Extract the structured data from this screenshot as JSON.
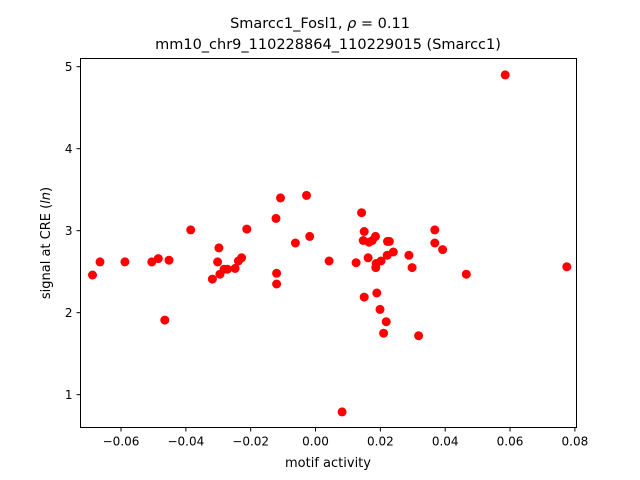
{
  "chart_data": {
    "type": "scatter",
    "title_line1": "Smarcc1_Fosl1, ",
    "title_rho_symbol": "ρ",
    "title_rho_value": " = 0.11",
    "title_line2": "mm10_chr9_110228864_110229015 (Smarcc1)",
    "xlabel": "motif activity",
    "ylabel_prefix": "signal at CRE (",
    "ylabel_italic": "ln",
    "ylabel_suffix": ")",
    "xlim": [
      -0.0725,
      0.0805
    ],
    "ylim": [
      0.6,
      5.1
    ],
    "xticks": [
      -0.06,
      -0.04,
      -0.02,
      0.0,
      0.02,
      0.04,
      0.06,
      0.08
    ],
    "xtick_labels": [
      "−0.06",
      "−0.04",
      "−0.02",
      "0.00",
      "0.02",
      "0.04",
      "0.06",
      "0.08"
    ],
    "yticks": [
      1,
      2,
      3,
      4,
      5
    ],
    "ytick_labels": [
      "1",
      "2",
      "3",
      "4",
      "5"
    ],
    "grid": false,
    "marker_color": "#ff0000",
    "points": [
      [
        -0.0688,
        2.46
      ],
      [
        -0.0665,
        2.62
      ],
      [
        -0.0588,
        2.62
      ],
      [
        -0.0505,
        2.62
      ],
      [
        -0.0485,
        2.66
      ],
      [
        -0.0465,
        1.91
      ],
      [
        -0.0452,
        2.64
      ],
      [
        -0.0385,
        3.01
      ],
      [
        -0.0318,
        2.41
      ],
      [
        -0.0302,
        2.62
      ],
      [
        -0.0298,
        2.79
      ],
      [
        -0.0295,
        2.47
      ],
      [
        -0.0282,
        2.53
      ],
      [
        -0.0272,
        2.53
      ],
      [
        -0.0248,
        2.54
      ],
      [
        -0.0238,
        2.63
      ],
      [
        -0.0228,
        2.67
      ],
      [
        -0.0212,
        3.02
      ],
      [
        -0.0122,
        3.15
      ],
      [
        -0.012,
        2.35
      ],
      [
        -0.012,
        2.48
      ],
      [
        -0.0108,
        3.4
      ],
      [
        -0.0062,
        2.85
      ],
      [
        -0.0028,
        3.43
      ],
      [
        -0.0018,
        2.93
      ],
      [
        0.0042,
        2.63
      ],
      [
        0.0082,
        0.79
      ],
      [
        0.0125,
        2.61
      ],
      [
        0.0142,
        3.22
      ],
      [
        0.0147,
        2.88
      ],
      [
        0.015,
        2.99
      ],
      [
        0.015,
        2.19
      ],
      [
        0.0162,
        2.67
      ],
      [
        0.0165,
        2.86
      ],
      [
        0.0175,
        2.88
      ],
      [
        0.0185,
        2.93
      ],
      [
        0.0186,
        2.55
      ],
      [
        0.0187,
        2.6
      ],
      [
        0.0189,
        2.24
      ],
      [
        0.0199,
        2.04
      ],
      [
        0.0202,
        2.63
      ],
      [
        0.021,
        1.75
      ],
      [
        0.0218,
        1.89
      ],
      [
        0.0221,
        2.7
      ],
      [
        0.0222,
        2.87
      ],
      [
        0.0228,
        2.87
      ],
      [
        0.024,
        2.74
      ],
      [
        0.0288,
        2.7
      ],
      [
        0.0298,
        2.55
      ],
      [
        0.0318,
        1.72
      ],
      [
        0.0368,
        3.01
      ],
      [
        0.0368,
        2.85
      ],
      [
        0.0392,
        2.77
      ],
      [
        0.0465,
        2.47
      ],
      [
        0.0585,
        4.9
      ],
      [
        0.0775,
        2.56
      ]
    ]
  }
}
